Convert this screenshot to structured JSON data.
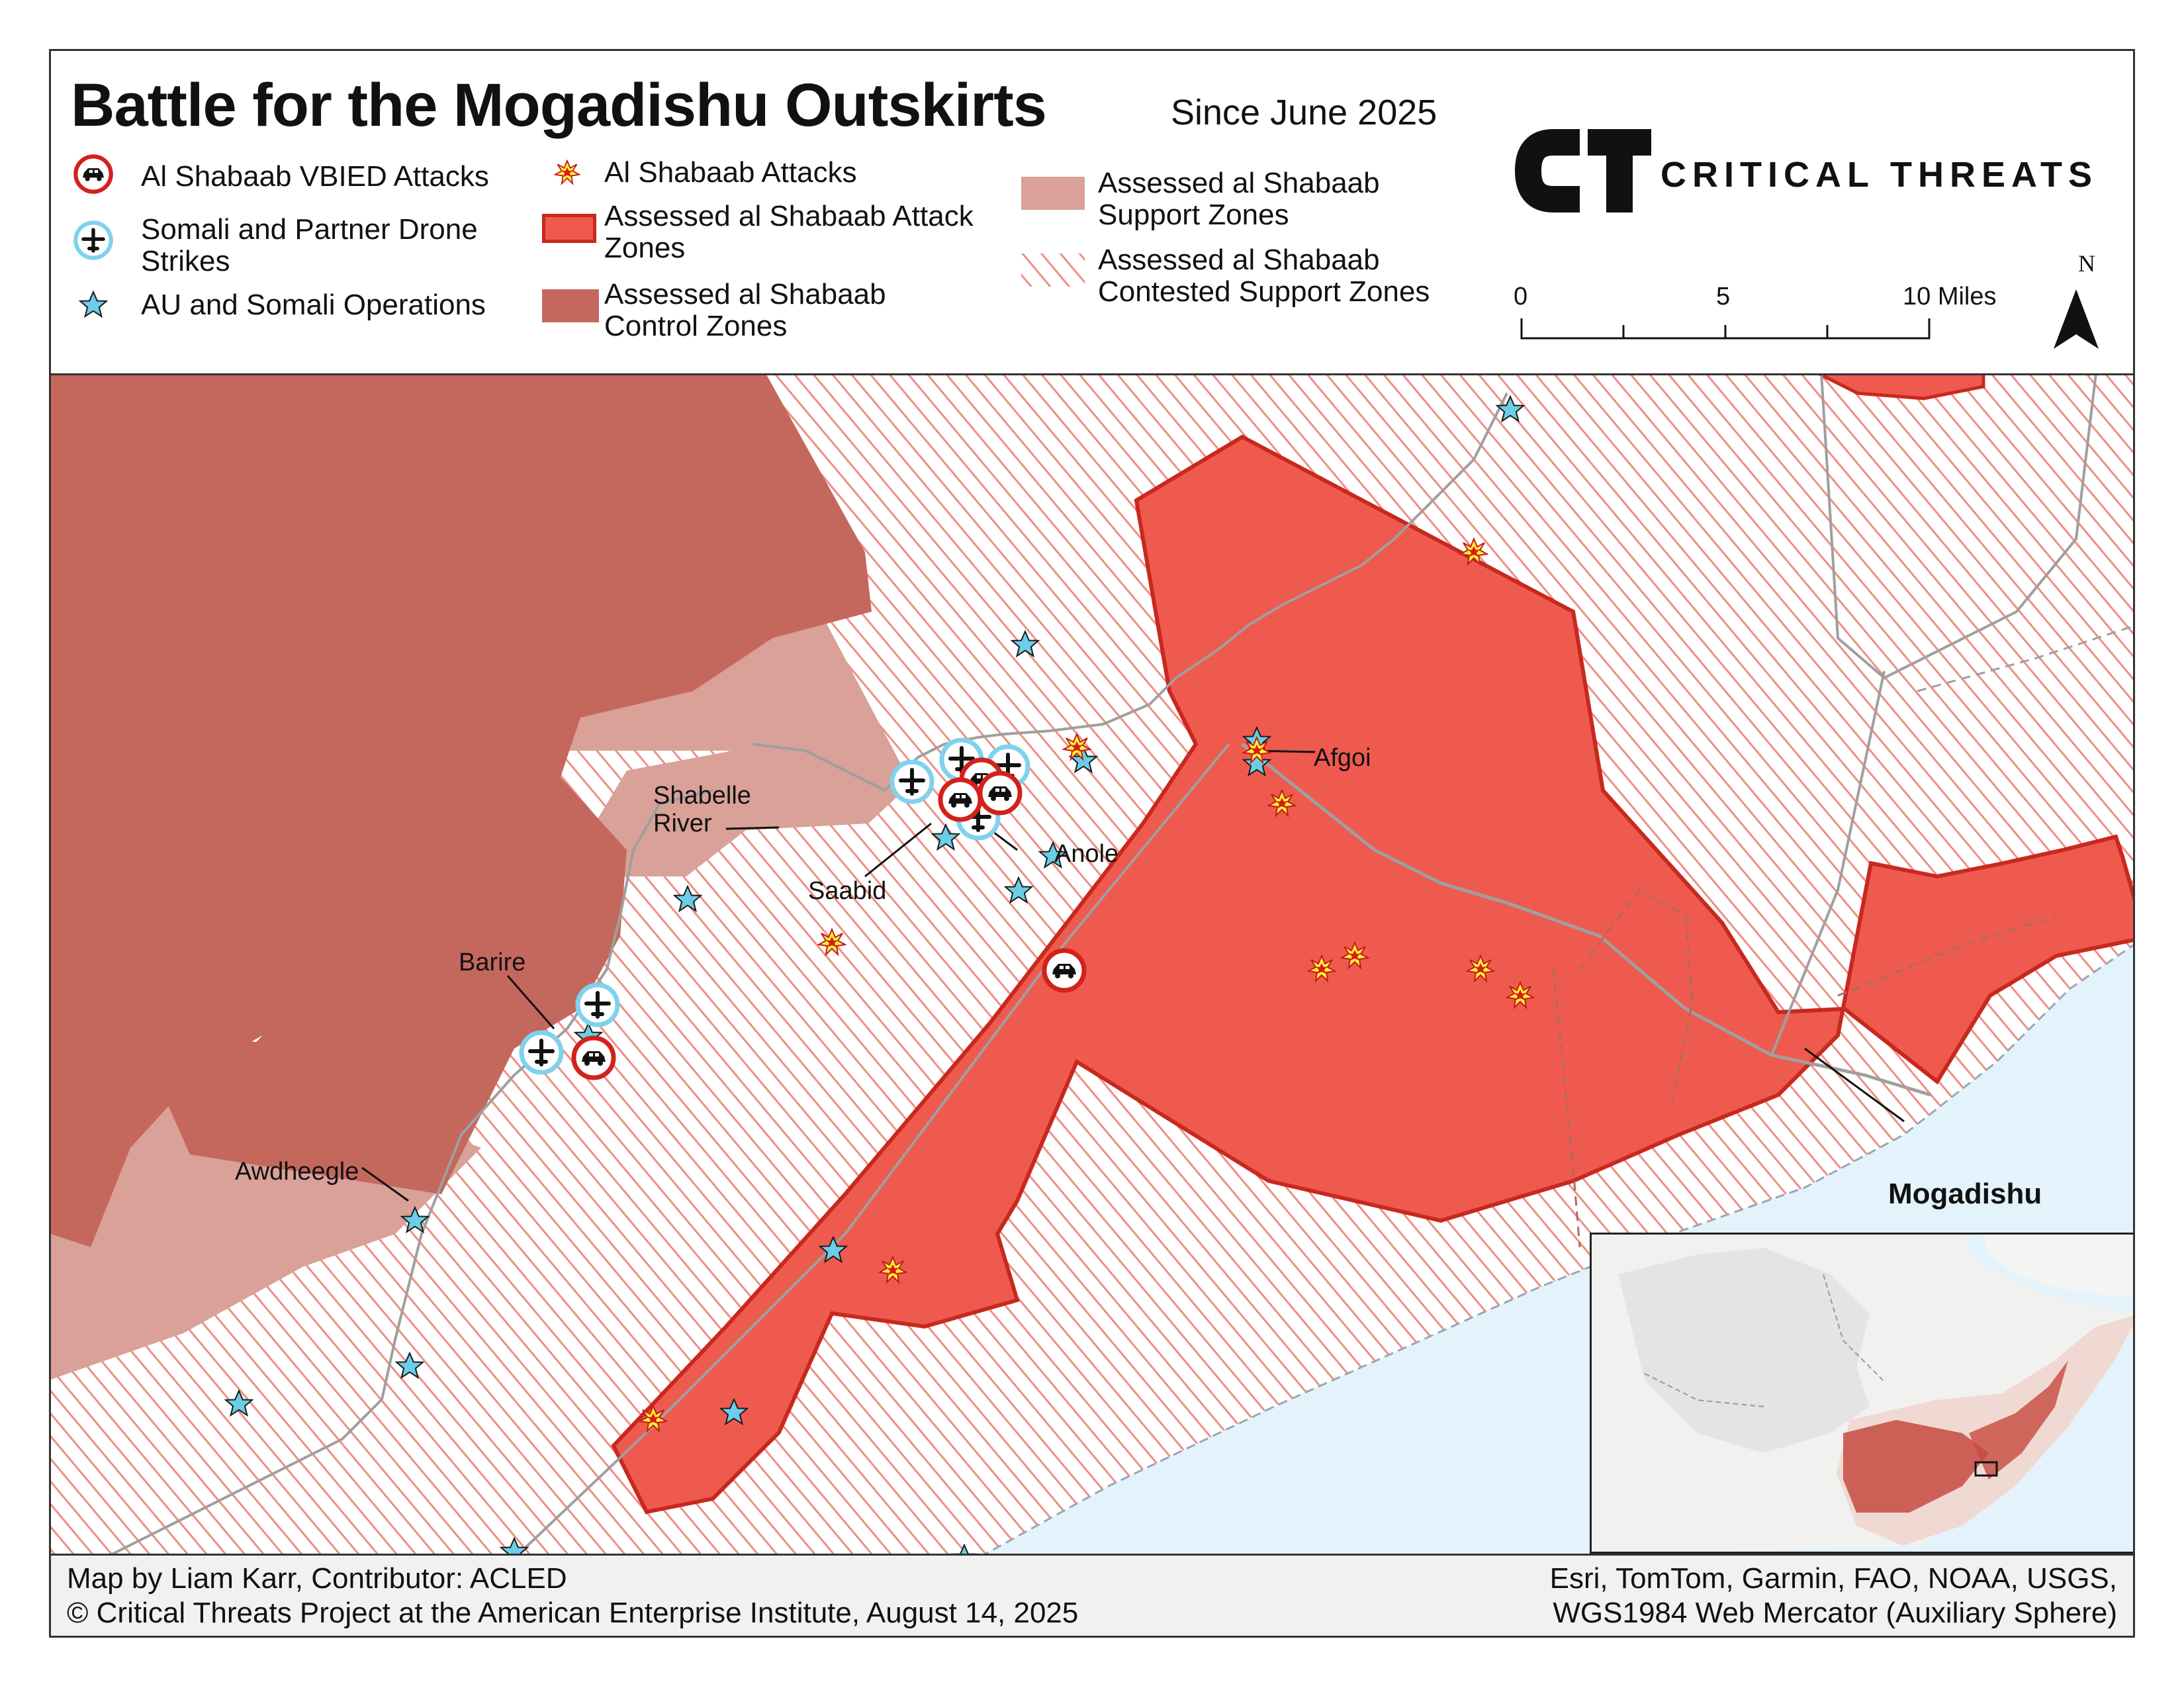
{
  "header": {
    "title": "Battle for the Mogadishu Outskirts",
    "subtitle": "Since June 2025",
    "brand": "CRITICAL THREATS",
    "logo_mark": "CT"
  },
  "legend": {
    "vbied": "Al Shabaab VBIED Attacks",
    "drone": "Somali and Partner Drone\nStrikes",
    "operations": "AU and Somali Operations",
    "attacks": "Al Shabaab Attacks",
    "attack_zones": "Assessed al Shabaab Attack\nZones",
    "control_zones": "Assessed al Shabaab\nControl Zones",
    "support_zones": "Assessed al Shabaab\nSupport Zones",
    "contested_support": "Assessed al Shabaab\nContested Support Zones"
  },
  "scale": {
    "labels": [
      "0",
      "5",
      "10 Miles"
    ]
  },
  "north": "N",
  "places": {
    "afgoi": "Afgoi",
    "shabelle": "Shabelle\nRiver",
    "anole": "Anole",
    "saabid": "Saabid",
    "barire": "Barire",
    "awdheegle": "Awdheegle",
    "mogadishu": "Mogadishu"
  },
  "footer": {
    "credit_line1": "Map by Liam Karr, Contributor: ACLED",
    "credit_line2": "© Critical Threats Project at the American Enterprise Institute, August 14, 2025",
    "source_line1": "Esri, TomTom, Garmin, FAO, NOAA, USGS,",
    "source_line2": "WGS1984 Web Mercator (Auxiliary Sphere)"
  },
  "colors": {
    "control": "#c4685e",
    "support": "#d9a198",
    "attack_zone": "#ef5a4e",
    "attack_outline": "#c8281e",
    "hatch": "#ee8a80",
    "ocean": "#e3f2fb",
    "star": "#6ccde6",
    "vbied_ring": "#d3211b",
    "drone_ring": "#7fd2ee"
  },
  "icons": [
    "car-icon",
    "plane-icon",
    "star-icon",
    "explosion-icon",
    "north-arrow-icon"
  ]
}
